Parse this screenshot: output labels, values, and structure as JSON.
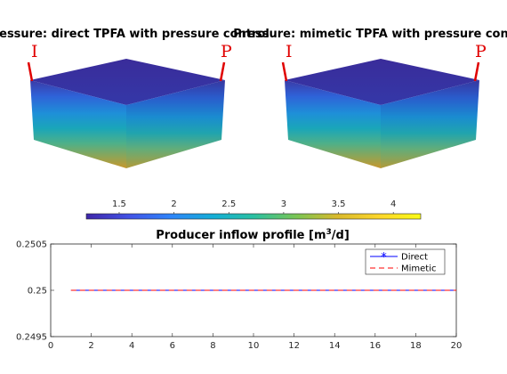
{
  "panels": [
    {
      "title": "Pressure: direct TPFA with pressure control",
      "wells": {
        "injector": "I",
        "producer": "P"
      }
    },
    {
      "title": "Pressure: mimetic TPFA with pressure control",
      "wells": {
        "injector": "I",
        "producer": "P"
      }
    }
  ],
  "colorbar": {
    "ticks": [
      "1.5",
      "2",
      "2.5",
      "3",
      "3.5",
      "4"
    ],
    "tick_values": [
      1.5,
      2,
      2.5,
      3,
      3.5,
      4
    ],
    "range": [
      1.2,
      4.25
    ],
    "colormap": [
      "#3e26a8",
      "#4253e6",
      "#2f84fa",
      "#14aed6",
      "#2ac0a2",
      "#7bc553",
      "#d9b92c",
      "#fdd72b",
      "#f9fb15"
    ]
  },
  "chart_data": {
    "type": "line",
    "title": "Producer inflow profile [m3/d]",
    "title_main": "Producer inflow profile [m",
    "title_sup": "3",
    "title_end": "/d]",
    "xlim": [
      0,
      20
    ],
    "ylim": [
      0.2495,
      0.2505
    ],
    "x_ticks": [
      "0",
      "2",
      "4",
      "6",
      "8",
      "10",
      "12",
      "14",
      "16",
      "18",
      "20"
    ],
    "y_ticks": [
      "0.2495",
      "0.25",
      "0.2505"
    ],
    "legend_position": "top-right",
    "series": [
      {
        "name": "Direct",
        "style": "solid-star",
        "color": "#0000ff",
        "x": [
          1,
          2,
          3,
          4,
          5,
          6,
          7,
          8,
          9,
          10,
          11,
          12,
          13,
          14,
          15,
          16,
          17,
          18,
          19,
          20
        ],
        "values": [
          0.25,
          0.25,
          0.25,
          0.25,
          0.25,
          0.25,
          0.25,
          0.25,
          0.25,
          0.25,
          0.25,
          0.25,
          0.25,
          0.25,
          0.25,
          0.25,
          0.25,
          0.25,
          0.25,
          0.25
        ]
      },
      {
        "name": "Mimetic",
        "style": "dashed",
        "color": "#ff0000",
        "x": [
          1,
          2,
          3,
          4,
          5,
          6,
          7,
          8,
          9,
          10,
          11,
          12,
          13,
          14,
          15,
          16,
          17,
          18,
          19,
          20
        ],
        "values": [
          0.25,
          0.25,
          0.25,
          0.25,
          0.25,
          0.25,
          0.25,
          0.25,
          0.25,
          0.25,
          0.25,
          0.25,
          0.25,
          0.25,
          0.25,
          0.25,
          0.25,
          0.25,
          0.25,
          0.25
        ]
      }
    ]
  }
}
